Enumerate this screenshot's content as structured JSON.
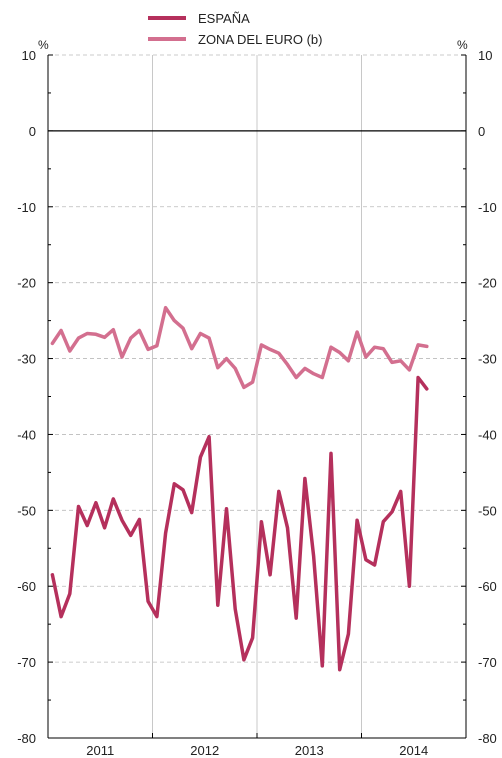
{
  "chart_data": {
    "type": "line",
    "unit_label_left": "%",
    "unit_label_right": "%",
    "ylim": [
      -80,
      10
    ],
    "y_ticks": [
      10,
      0,
      -10,
      -20,
      -30,
      -40,
      -50,
      -60,
      -70,
      -80
    ],
    "y_tick_labels": [
      "10",
      "0",
      "-10",
      "-20",
      "-30",
      "-40",
      "-50",
      "-60",
      "-70",
      "-80"
    ],
    "years": [
      "2011",
      "2012",
      "2013",
      "2014"
    ],
    "grid": true,
    "legend_position": "top-center",
    "colors": {
      "espana": "#b5305c",
      "zona": "#d36f8f",
      "zero_line": "#000000",
      "grid": "#bbbbbb",
      "year_line": "#c8c8c8"
    },
    "series": [
      {
        "name": "ESPAÑA",
        "x": [
          "2011-01",
          "2011-02",
          "2011-03",
          "2011-04",
          "2011-05",
          "2011-06",
          "2011-07",
          "2011-08",
          "2011-09",
          "2011-10",
          "2011-11",
          "2011-12",
          "2012-01",
          "2012-02",
          "2012-03",
          "2012-04",
          "2012-05",
          "2012-06",
          "2012-07",
          "2012-08",
          "2012-09",
          "2012-10",
          "2012-11",
          "2012-12",
          "2013-01",
          "2013-02",
          "2013-03",
          "2013-04",
          "2013-05",
          "2013-06",
          "2013-07",
          "2013-08",
          "2013-09",
          "2013-10",
          "2013-11",
          "2013-12",
          "2014-01",
          "2014-02",
          "2014-03",
          "2014-04",
          "2014-05",
          "2014-06",
          "2014-07",
          "2014-08"
        ],
        "values": [
          -58.5,
          -64,
          -61,
          -49.5,
          -52,
          -49,
          -52.3,
          -48.5,
          -51.3,
          -53.3,
          -51.2,
          -62,
          -64,
          -53,
          -46.5,
          -47.3,
          -50.3,
          -43,
          -40.3,
          -62.5,
          -49.8,
          -63,
          -69.7,
          -66.8,
          -51.5,
          -58.5,
          -47.5,
          -52.3,
          -64.2,
          -45.8,
          -56,
          -70.5,
          -42.5,
          -71,
          -66.3,
          -51.3,
          -56.5,
          -57.2,
          -51.5,
          -50.2,
          -47.5,
          -60,
          -32.5,
          -34
        ]
      },
      {
        "name": "ZONA DEL EURO (b)",
        "x": [
          "2011-01",
          "2011-02",
          "2011-03",
          "2011-04",
          "2011-05",
          "2011-06",
          "2011-07",
          "2011-08",
          "2011-09",
          "2011-10",
          "2011-11",
          "2011-12",
          "2012-01",
          "2012-02",
          "2012-03",
          "2012-04",
          "2012-05",
          "2012-06",
          "2012-07",
          "2012-08",
          "2012-09",
          "2012-10",
          "2012-11",
          "2012-12",
          "2013-01",
          "2013-02",
          "2013-03",
          "2013-04",
          "2013-05",
          "2013-06",
          "2013-07",
          "2013-08",
          "2013-09",
          "2013-10",
          "2013-11",
          "2013-12",
          "2014-01",
          "2014-02",
          "2014-03",
          "2014-04",
          "2014-05",
          "2014-06",
          "2014-07",
          "2014-08"
        ],
        "values": [
          -28,
          -26.3,
          -29,
          -27.3,
          -26.7,
          -26.8,
          -27.2,
          -26.2,
          -29.8,
          -27.3,
          -26.3,
          -28.8,
          -28.3,
          -23.3,
          -25,
          -26,
          -28.7,
          -26.7,
          -27.3,
          -31.2,
          -30,
          -31.3,
          -33.8,
          -33.1,
          -28.2,
          -28.8,
          -29.3,
          -30.8,
          -32.5,
          -31.3,
          -32,
          -32.5,
          -28.5,
          -29.2,
          -30.3,
          -26.5,
          -29.8,
          -28.5,
          -28.7,
          -30.5,
          -30.3,
          -31.5,
          -28.2,
          -28.4
        ]
      }
    ]
  }
}
